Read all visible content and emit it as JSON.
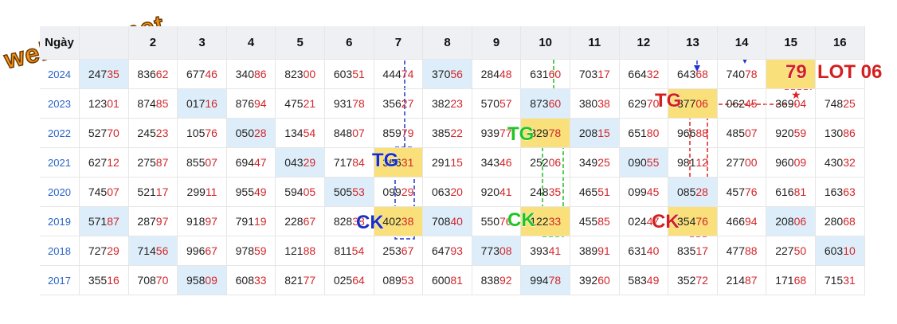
{
  "watermark": "webxoso.net",
  "table": {
    "header": [
      "Ngày",
      "2",
      "3",
      "4",
      "5",
      "6",
      "7",
      "8",
      "9",
      "10",
      "11",
      "12",
      "13",
      "14",
      "15",
      "16"
    ],
    "rows": [
      {
        "year": "2024",
        "cells": [
          "24735",
          "83662",
          "67746",
          "34086",
          "82300",
          "60351",
          "44474",
          "37056",
          "28448",
          "63160",
          "70317",
          "66432",
          "64368",
          "74078",
          null,
          null
        ]
      },
      {
        "year": "2023",
        "cells": [
          "12301",
          "87485",
          "01716",
          "87694",
          "47521",
          "93178",
          "35627",
          "38223",
          "57057",
          "87360",
          "38038",
          "62970",
          "37706",
          "06245",
          "36904",
          "74825"
        ]
      },
      {
        "year": "2022",
        "cells": [
          "52770",
          "24523",
          "10576",
          "05028",
          "13454",
          "84807",
          "85979",
          "38522",
          "93977",
          "32978",
          "20815",
          "65180",
          "96688",
          "48507",
          "92059",
          "13086"
        ]
      },
      {
        "year": "2021",
        "cells": [
          "62712",
          "27587",
          "85507",
          "69447",
          "04329",
          "71784",
          "36631",
          "29115",
          "34346",
          "25206",
          "34925",
          "09055",
          "98112",
          "27700",
          "96009",
          "43032"
        ]
      },
      {
        "year": "2020",
        "cells": [
          "74507",
          "52117",
          "29911",
          "95549",
          "59405",
          "50553",
          "09929",
          "06320",
          "92041",
          "24835",
          "46551",
          "09945",
          "08528",
          "45776",
          "61681",
          "16363"
        ]
      },
      {
        "year": "2019",
        "cells": [
          "57187",
          "28797",
          "91897",
          "79119",
          "22867",
          "82838",
          "40238",
          "70840",
          "55076",
          "12233",
          "45585",
          "02447",
          "35476",
          "46694",
          "20806",
          "28068"
        ]
      },
      {
        "year": "2018",
        "cells": [
          "72729",
          "71456",
          "99667",
          "97859",
          "12188",
          "81154",
          "25367",
          "64793",
          "77308",
          "39341",
          "38991",
          "63140",
          "83517",
          "47788",
          "22750",
          "60310"
        ]
      },
      {
        "year": "2017",
        "cells": [
          "35516",
          "70870",
          "95809",
          "60833",
          "82177",
          "02564",
          "08953",
          "60081",
          "83892",
          "99478",
          "39260",
          "58349",
          "35272",
          "21487",
          "17168",
          "71531"
        ]
      }
    ]
  },
  "annotations": [
    "TG",
    "CK",
    "TG",
    "CK",
    "TG",
    "CK",
    "79",
    "LOT 06"
  ]
}
